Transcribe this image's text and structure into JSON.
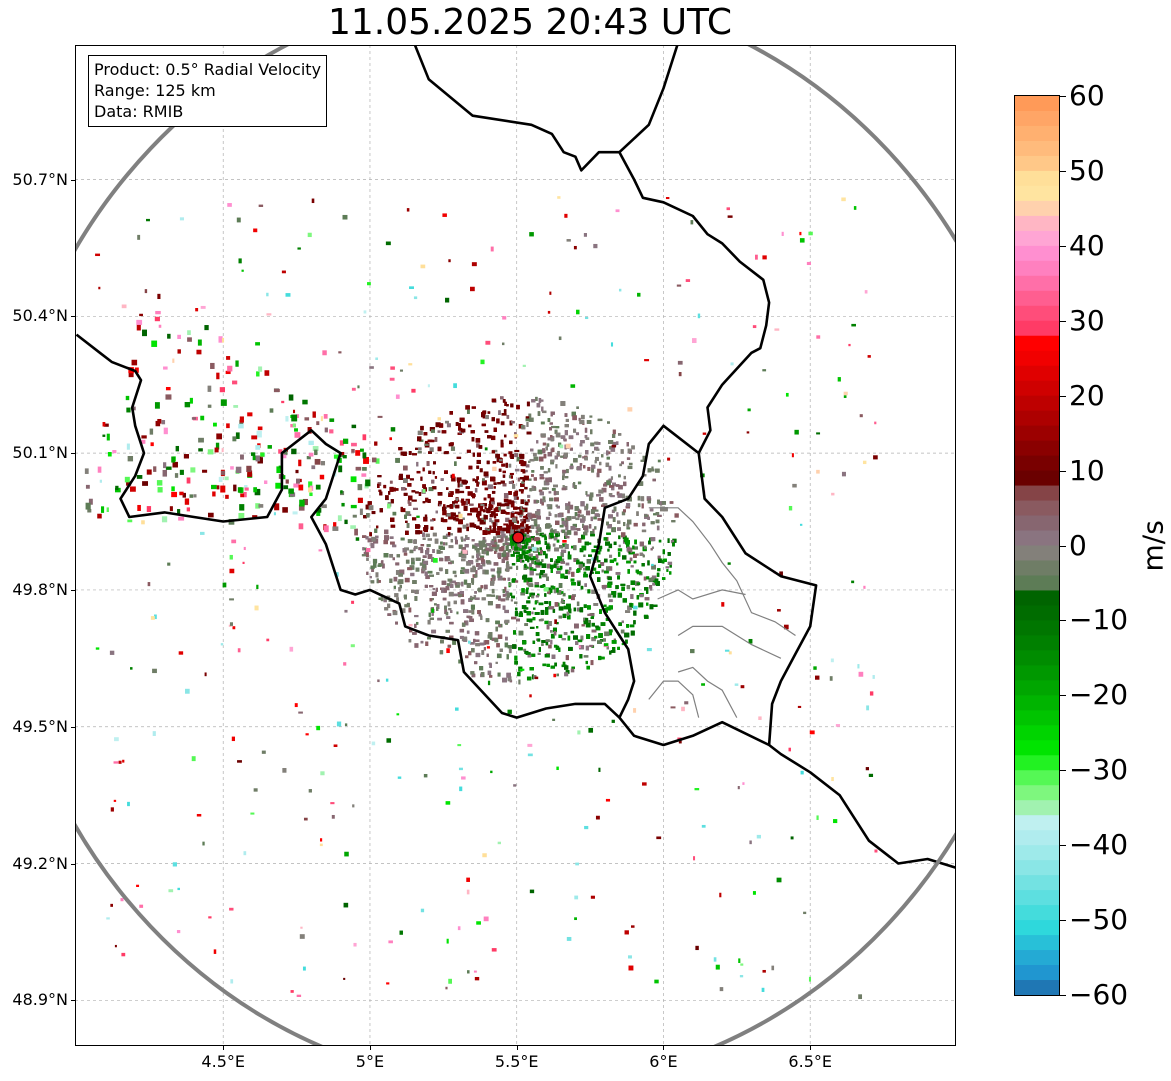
{
  "title": "11.05.2025 20:43 UTC",
  "info_box": {
    "product": "Product: 0.5° Radial Velocity",
    "range": "Range: 125 km",
    "data": "Data: RMIB"
  },
  "axes": {
    "lat_ticks": [
      "50.7°N",
      "50.4°N",
      "50.1°N",
      "49.8°N",
      "49.5°N",
      "49.2°N",
      "48.9°N"
    ],
    "lat_values": [
      50.7,
      50.4,
      50.1,
      49.8,
      49.5,
      49.2,
      48.9
    ],
    "lon_ticks": [
      "4.5°E",
      "5°E",
      "5.5°E",
      "6°E",
      "6.5°E"
    ],
    "lon_values": [
      4.5,
      5.0,
      5.5,
      6.0,
      6.5
    ],
    "lon_range": [
      4.0,
      7.0
    ],
    "lat_range": [
      48.8,
      51.0
    ],
    "grid": true
  },
  "radar_site": {
    "lon": 5.505,
    "lat": 49.915,
    "color": "#e8161b"
  },
  "range_ring_km": 125,
  "colorbar": {
    "unit": "m/s",
    "min": -60,
    "max": 60,
    "tick_labels": [
      "60",
      "50",
      "40",
      "30",
      "20",
      "10",
      "0",
      "−10",
      "−20",
      "−30",
      "−40",
      "−50",
      "−60"
    ],
    "tick_values": [
      60,
      50,
      40,
      30,
      20,
      10,
      0,
      -10,
      -20,
      -30,
      -40,
      -50,
      -60
    ],
    "segments": [
      {
        "from": 58,
        "to": 60,
        "color": "#ff9a58"
      },
      {
        "from": 56,
        "to": 58,
        "color": "#ffa566"
      },
      {
        "from": 54,
        "to": 56,
        "color": "#ffb070"
      },
      {
        "from": 52,
        "to": 54,
        "color": "#ffbb7c"
      },
      {
        "from": 50,
        "to": 52,
        "color": "#ffc888"
      },
      {
        "from": 48,
        "to": 50,
        "color": "#ffdf99"
      },
      {
        "from": 46,
        "to": 48,
        "color": "#ffe4a0"
      },
      {
        "from": 44,
        "to": 46,
        "color": "#ffd1ad"
      },
      {
        "from": 42,
        "to": 44,
        "color": "#ffb6c4"
      },
      {
        "from": 40,
        "to": 42,
        "color": "#ffa5d4"
      },
      {
        "from": 38,
        "to": 40,
        "color": "#ff8fd0"
      },
      {
        "from": 36,
        "to": 38,
        "color": "#ff80bf"
      },
      {
        "from": 34,
        "to": 36,
        "color": "#ff6fa8"
      },
      {
        "from": 32,
        "to": 34,
        "color": "#ff5e90"
      },
      {
        "from": 30,
        "to": 32,
        "color": "#ff4d7a"
      },
      {
        "from": 28,
        "to": 30,
        "color": "#ff3b66"
      },
      {
        "from": 26,
        "to": 28,
        "color": "#ff0000"
      },
      {
        "from": 24,
        "to": 26,
        "color": "#f10000"
      },
      {
        "from": 22,
        "to": 24,
        "color": "#e00000"
      },
      {
        "from": 20,
        "to": 22,
        "color": "#cf0000"
      },
      {
        "from": 18,
        "to": 20,
        "color": "#be0000"
      },
      {
        "from": 16,
        "to": 18,
        "color": "#ad0000"
      },
      {
        "from": 14,
        "to": 16,
        "color": "#9c0000"
      },
      {
        "from": 12,
        "to": 14,
        "color": "#8a0000"
      },
      {
        "from": 10,
        "to": 12,
        "color": "#790000"
      },
      {
        "from": 8,
        "to": 10,
        "color": "#6a0000"
      },
      {
        "from": 6,
        "to": 8,
        "color": "#854447"
      },
      {
        "from": 4,
        "to": 6,
        "color": "#8a5a60"
      },
      {
        "from": 2,
        "to": 4,
        "color": "#876670"
      },
      {
        "from": 0,
        "to": 2,
        "color": "#8a7480"
      },
      {
        "from": -2,
        "to": 0,
        "color": "#83807a"
      },
      {
        "from": -4,
        "to": -2,
        "color": "#6f7d66"
      },
      {
        "from": -6,
        "to": -4,
        "color": "#5d7c56"
      },
      {
        "from": -8,
        "to": -6,
        "color": "#006400"
      },
      {
        "from": -10,
        "to": -8,
        "color": "#006c00"
      },
      {
        "from": -12,
        "to": -10,
        "color": "#007600"
      },
      {
        "from": -14,
        "to": -12,
        "color": "#008000"
      },
      {
        "from": -16,
        "to": -14,
        "color": "#008c00"
      },
      {
        "from": -18,
        "to": -16,
        "color": "#009800"
      },
      {
        "from": -20,
        "to": -18,
        "color": "#00a600"
      },
      {
        "from": -22,
        "to": -20,
        "color": "#00b400"
      },
      {
        "from": -24,
        "to": -22,
        "color": "#00c400"
      },
      {
        "from": -26,
        "to": -24,
        "color": "#00d400"
      },
      {
        "from": -28,
        "to": -26,
        "color": "#00e400"
      },
      {
        "from": -30,
        "to": -28,
        "color": "#22f222"
      },
      {
        "from": -32,
        "to": -30,
        "color": "#55f855"
      },
      {
        "from": -34,
        "to": -32,
        "color": "#7ef77e"
      },
      {
        "from": -36,
        "to": -34,
        "color": "#a1f2b0"
      },
      {
        "from": -38,
        "to": -36,
        "color": "#bff0f0"
      },
      {
        "from": -40,
        "to": -38,
        "color": "#b0ecee"
      },
      {
        "from": -42,
        "to": -40,
        "color": "#9eeaea"
      },
      {
        "from": -44,
        "to": -42,
        "color": "#8ae6e6"
      },
      {
        "from": -46,
        "to": -44,
        "color": "#73e2e2"
      },
      {
        "from": -48,
        "to": -46,
        "color": "#5ddfe0"
      },
      {
        "from": -50,
        "to": -48,
        "color": "#44dcdc"
      },
      {
        "from": -52,
        "to": -50,
        "color": "#2ed8dc"
      },
      {
        "from": -54,
        "to": -52,
        "color": "#28c0d8"
      },
      {
        "from": -56,
        "to": -54,
        "color": "#24aad4"
      },
      {
        "from": -58,
        "to": -56,
        "color": "#2096d0"
      },
      {
        "from": -60,
        "to": -58,
        "color": "#1f77b4"
      }
    ]
  },
  "colors": {
    "border": "#000000",
    "district_border": "#808080",
    "range_ring": "#808080",
    "grid": "#b0b0b0"
  },
  "borders": {
    "national": [
      [
        [
          4.0,
          50.36
        ],
        [
          4.08,
          50.32
        ],
        [
          4.12,
          50.3
        ],
        [
          4.2,
          50.28
        ],
        [
          4.22,
          50.26
        ],
        [
          4.19,
          50.2
        ],
        [
          4.2,
          50.16
        ],
        [
          4.23,
          50.1
        ],
        [
          4.2,
          50.05
        ],
        [
          4.15,
          50.0
        ],
        [
          4.18,
          49.96
        ],
        [
          4.3,
          49.97
        ],
        [
          4.4,
          49.96
        ],
        [
          4.5,
          49.95
        ],
        [
          4.65,
          49.96
        ],
        [
          4.7,
          50.02
        ],
        [
          4.7,
          50.1
        ],
        [
          4.8,
          50.15
        ],
        [
          4.85,
          50.12
        ],
        [
          4.9,
          50.1
        ],
        [
          4.85,
          50.0
        ],
        [
          4.8,
          49.96
        ],
        [
          4.85,
          49.9
        ],
        [
          4.9,
          49.8
        ],
        [
          4.95,
          49.79
        ],
        [
          5.0,
          49.8
        ],
        [
          5.1,
          49.77
        ],
        [
          5.12,
          49.72
        ],
        [
          5.2,
          49.7
        ],
        [
          5.3,
          49.69
        ],
        [
          5.32,
          49.62
        ],
        [
          5.45,
          49.53
        ],
        [
          5.5,
          49.52
        ],
        [
          5.6,
          49.54
        ],
        [
          5.7,
          49.55
        ],
        [
          5.8,
          49.55
        ],
        [
          5.85,
          49.52
        ],
        [
          5.9,
          49.48
        ],
        [
          6.0,
          49.46
        ],
        [
          6.1,
          49.48
        ],
        [
          6.2,
          49.51
        ],
        [
          6.36,
          49.46
        ],
        [
          6.4,
          49.44
        ],
        [
          6.5,
          49.4
        ],
        [
          6.6,
          49.35
        ],
        [
          6.7,
          49.25
        ],
        [
          6.8,
          49.2
        ],
        [
          6.9,
          49.21
        ],
        [
          7.0,
          49.19
        ]
      ],
      [
        [
          5.85,
          50.76
        ],
        [
          5.9,
          50.7
        ],
        [
          5.93,
          50.66
        ],
        [
          6.0,
          50.65
        ],
        [
          6.1,
          50.62
        ],
        [
          6.15,
          50.58
        ],
        [
          6.2,
          50.56
        ],
        [
          6.26,
          50.52
        ],
        [
          6.34,
          50.48
        ],
        [
          6.36,
          50.43
        ],
        [
          6.35,
          50.38
        ],
        [
          6.33,
          50.33
        ],
        [
          6.3,
          50.32
        ],
        [
          6.2,
          50.25
        ],
        [
          6.15,
          50.2
        ],
        [
          6.16,
          50.15
        ],
        [
          6.12,
          50.1
        ],
        [
          6.0,
          50.16
        ],
        [
          5.95,
          50.12
        ],
        [
          5.93,
          50.05
        ],
        [
          5.88,
          50.0
        ],
        [
          5.8,
          49.98
        ],
        [
          5.78,
          49.9
        ],
        [
          5.75,
          49.83
        ],
        [
          5.8,
          49.75
        ],
        [
          5.85,
          49.7
        ],
        [
          5.88,
          49.67
        ],
        [
          5.9,
          49.6
        ],
        [
          5.88,
          49.56
        ],
        [
          5.85,
          49.52
        ]
      ],
      [
        [
          6.12,
          50.1
        ],
        [
          6.14,
          50.0
        ],
        [
          6.2,
          49.96
        ],
        [
          6.28,
          49.88
        ],
        [
          6.4,
          49.83
        ],
        [
          6.52,
          49.81
        ],
        [
          6.5,
          49.72
        ],
        [
          6.45,
          49.66
        ],
        [
          6.4,
          49.6
        ],
        [
          6.37,
          49.55
        ],
        [
          6.36,
          49.46
        ]
      ],
      [
        [
          5.15,
          51.0
        ],
        [
          5.2,
          50.92
        ],
        [
          5.35,
          50.84
        ],
        [
          5.55,
          50.82
        ],
        [
          5.62,
          50.8
        ],
        [
          5.66,
          50.76
        ],
        [
          5.7,
          50.75
        ],
        [
          5.72,
          50.72
        ],
        [
          5.78,
          50.76
        ],
        [
          5.82,
          50.76
        ],
        [
          5.85,
          50.76
        ]
      ],
      [
        [
          5.85,
          50.76
        ],
        [
          5.95,
          50.82
        ],
        [
          6.0,
          50.9
        ],
        [
          6.05,
          51.0
        ]
      ]
    ],
    "districts": [
      [
        [
          5.95,
          49.98
        ],
        [
          6.05,
          49.98
        ],
        [
          6.1,
          49.95
        ],
        [
          6.16,
          49.9
        ],
        [
          6.2,
          49.86
        ],
        [
          6.25,
          49.82
        ],
        [
          6.3,
          49.75
        ],
        [
          6.38,
          49.73
        ],
        [
          6.45,
          49.7
        ]
      ],
      [
        [
          5.98,
          49.78
        ],
        [
          6.05,
          49.8
        ],
        [
          6.1,
          49.78
        ],
        [
          6.2,
          49.8
        ],
        [
          6.28,
          49.79
        ]
      ],
      [
        [
          6.05,
          49.7
        ],
        [
          6.1,
          49.72
        ],
        [
          6.2,
          49.72
        ],
        [
          6.3,
          49.68
        ],
        [
          6.4,
          49.65
        ]
      ],
      [
        [
          6.05,
          49.62
        ],
        [
          6.1,
          49.63
        ],
        [
          6.15,
          49.6
        ],
        [
          6.2,
          49.58
        ],
        [
          6.25,
          49.52
        ]
      ],
      [
        [
          5.95,
          49.56
        ],
        [
          6.0,
          49.6
        ],
        [
          6.05,
          49.6
        ],
        [
          6.1,
          49.57
        ],
        [
          6.12,
          49.52
        ]
      ]
    ]
  }
}
